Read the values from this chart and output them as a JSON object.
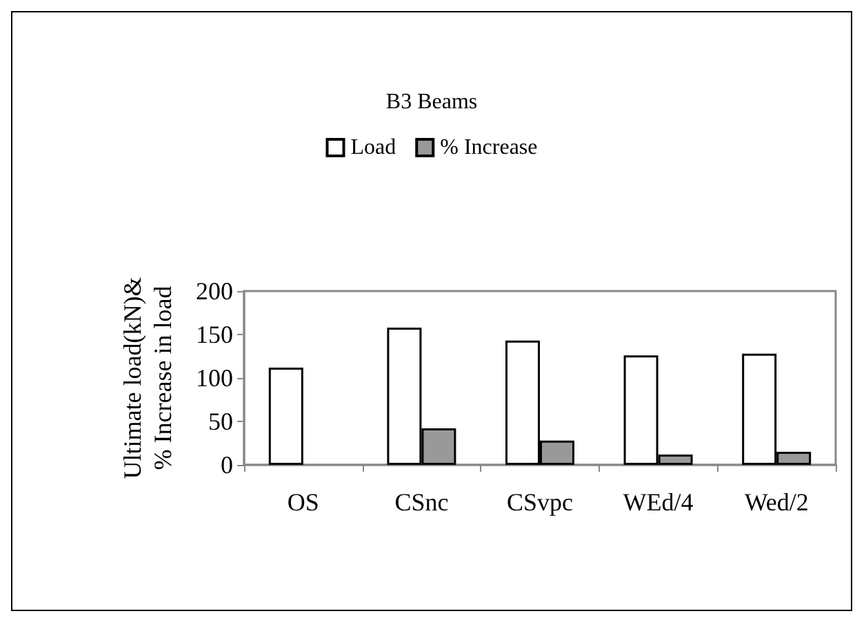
{
  "chart_data": {
    "type": "bar",
    "title": "B3 Beams",
    "ylabel": "Ultimate load(kN)&\n% Increase in load",
    "categories": [
      "OS",
      "CSnc",
      "CSvpc",
      "WEd/4",
      "Wed/2"
    ],
    "series": [
      {
        "name": "Load",
        "color": "#ffffff",
        "values": [
          112,
          158,
          143,
          126,
          128
        ]
      },
      {
        "name": "% Increase",
        "color": "#999999",
        "values": [
          null,
          42,
          28,
          12,
          15
        ]
      }
    ],
    "ylim": [
      0,
      200
    ],
    "yticks": [
      0,
      50,
      100,
      150,
      200
    ],
    "grid": false,
    "legend": "top"
  }
}
